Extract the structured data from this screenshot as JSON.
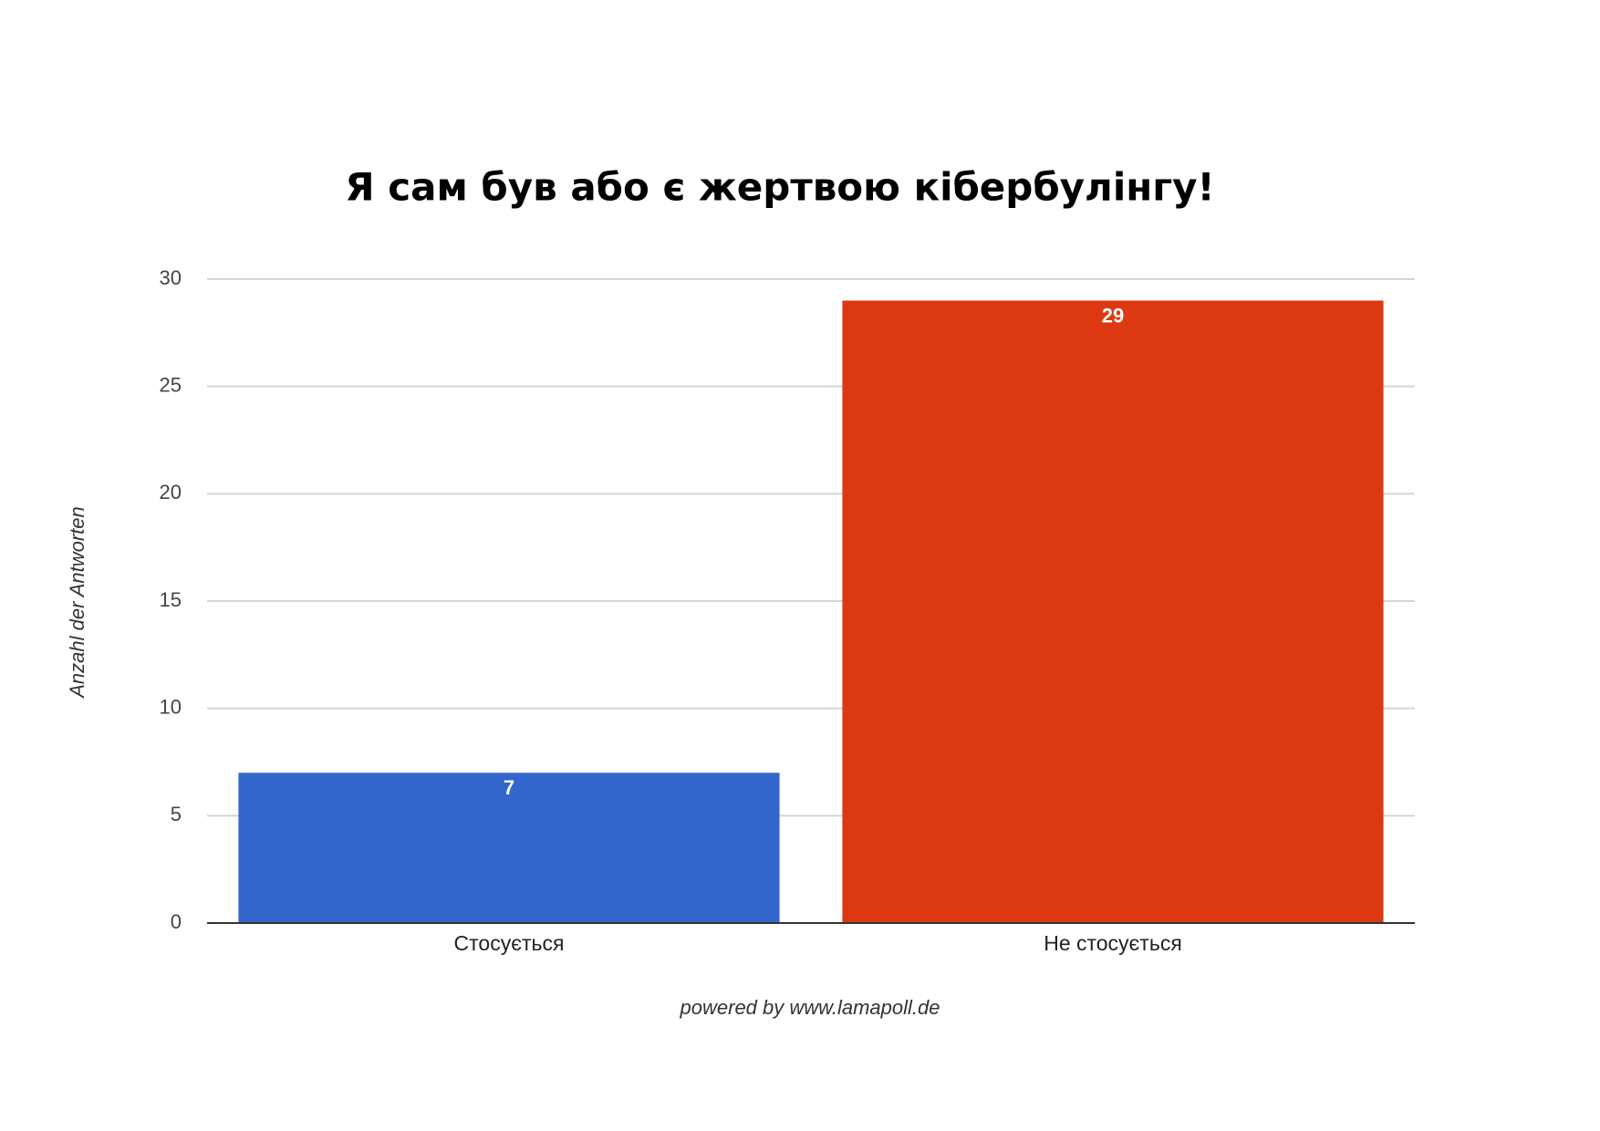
{
  "chart_data": {
    "type": "bar",
    "title": "Я сам був або є жертвою кібербулінгу!",
    "y_label": "Anzahl der Antworten",
    "footer": "powered by www.lamapoll.de",
    "categories": [
      "Стосується",
      "Не стосується"
    ],
    "values": [
      7,
      29
    ],
    "colors": [
      "#3366cc",
      "#dc3912"
    ],
    "ylim": [
      0,
      30
    ],
    "yticks": [
      0,
      5,
      10,
      15,
      20,
      25,
      30
    ],
    "grid": true
  }
}
